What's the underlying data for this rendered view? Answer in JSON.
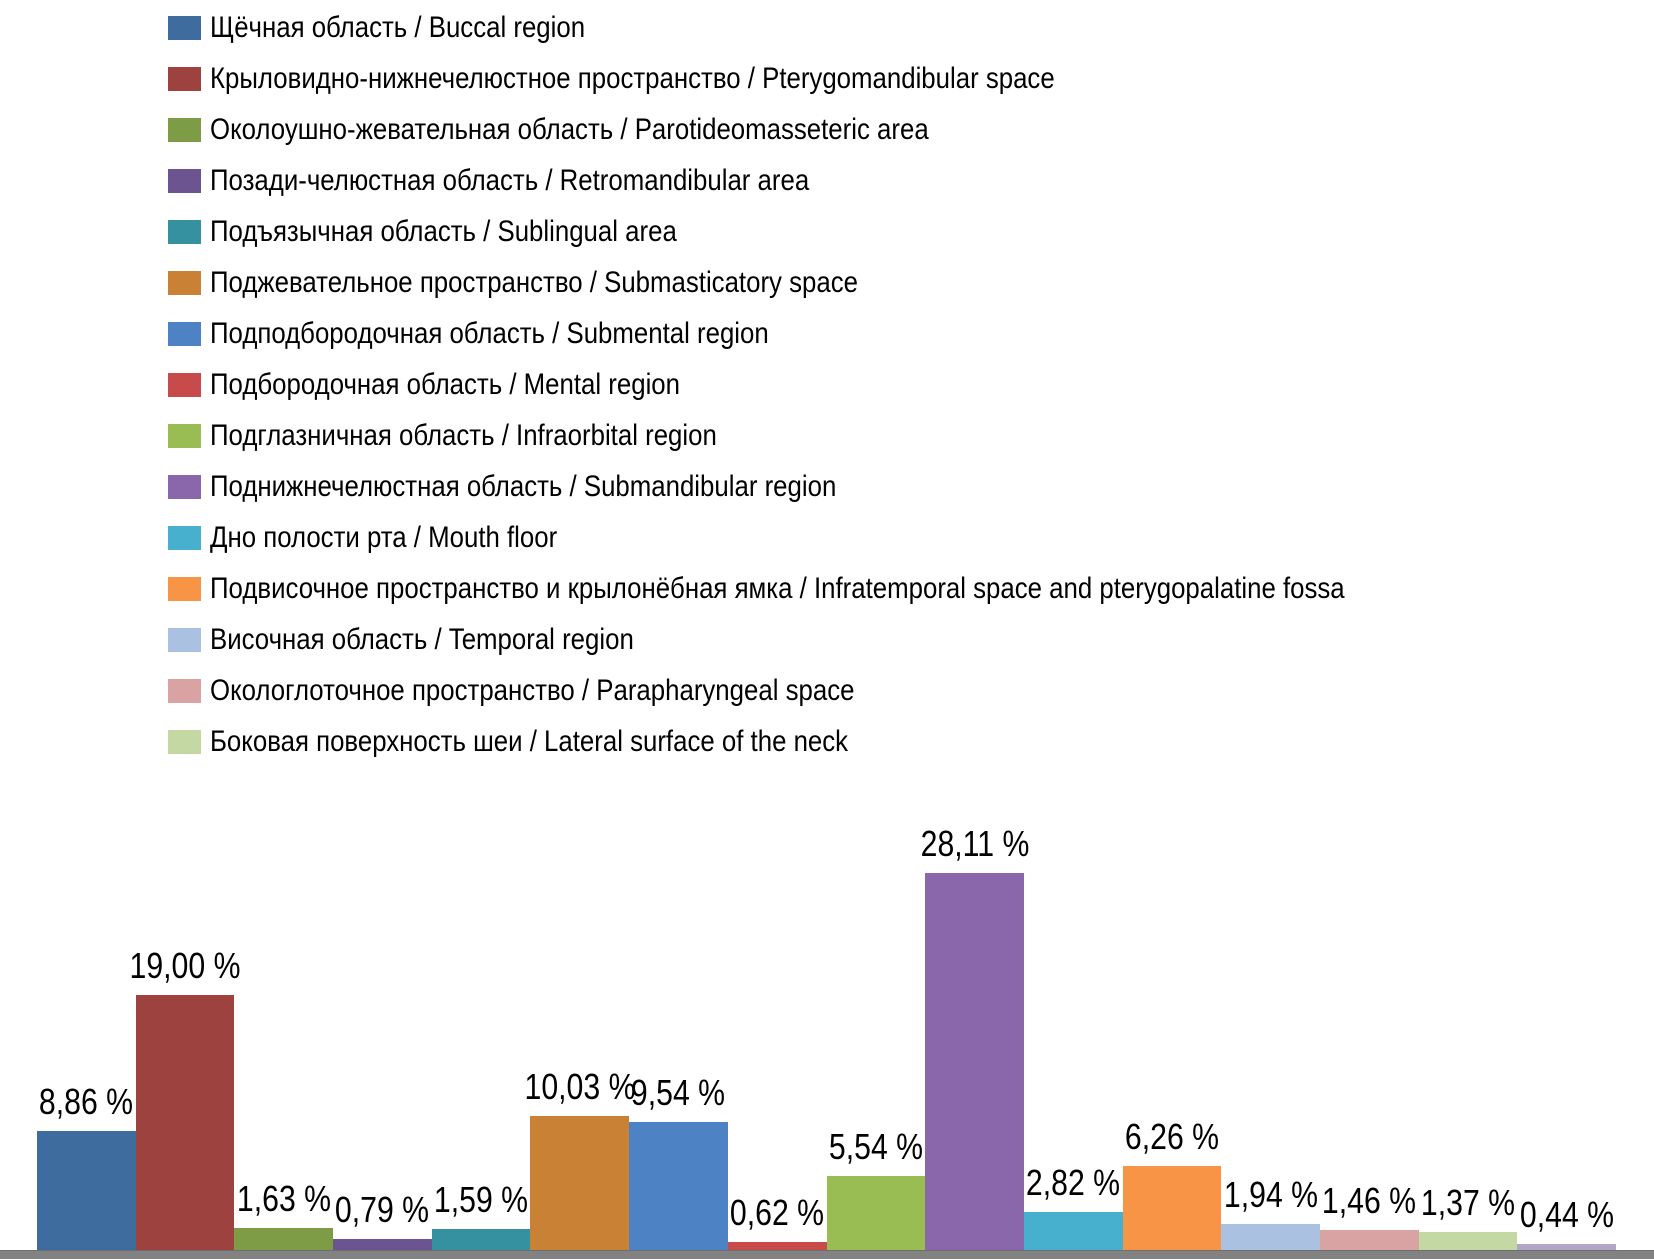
{
  "chart_data": {
    "type": "bar",
    "title": "",
    "value_unit": "%",
    "legend_position": "top-left",
    "layout_hints": {
      "gridlines": false,
      "y_axis": "hidden",
      "x_axis_line": true,
      "data_labels": "above bars, comma decimal separator"
    },
    "bars": [
      {
        "category": "Щёчная область / Buccal region",
        "value": 8.86,
        "label": "8,86 %",
        "color": "#3E6C9E",
        "in_legend": true
      },
      {
        "category": "Крыловидно-нижнечелюстное пространство / Pterygomandibular space",
        "value": 19.0,
        "label": "19,00 %",
        "color": "#9D423E",
        "in_legend": true
      },
      {
        "category": "Околоушно-жевательная область / Parotideomasseteric area",
        "value": 1.63,
        "label": "1,63 %",
        "color": "#7E9C45",
        "in_legend": true
      },
      {
        "category": "Позади-челюстная область / Retromandibular area",
        "value": 0.79,
        "label": "0,79 %",
        "color": "#6B5490",
        "in_legend": true
      },
      {
        "category": "Подъязычная область / Sublingual area",
        "value": 1.59,
        "label": "1,59 %",
        "color": "#35909F",
        "in_legend": true
      },
      {
        "category": "Поджевательное пространство / Submasticatory space",
        "value": 10.03,
        "label": "10,03 %",
        "color": "#C98136",
        "in_legend": true
      },
      {
        "category": "Подподбородочная область / Submental region",
        "value": 9.54,
        "label": "9,54 %",
        "color": "#4D83C4",
        "in_legend": true
      },
      {
        "category": "Подбородочная область / Mental region",
        "value": 0.62,
        "label": "0,62 %",
        "color": "#C74B4A",
        "in_legend": true
      },
      {
        "category": "Подглазничная область / Infraorbital region",
        "value": 5.54,
        "label": "5,54 %",
        "color": "#9ABD53",
        "in_legend": true
      },
      {
        "category": "Поднижнечелюстная область / Submandibular region",
        "value": 28.11,
        "label": "28,11 %",
        "color": "#8A66AB",
        "in_legend": true
      },
      {
        "category": "Дно полости рта / Mouth floor",
        "value": 2.82,
        "label": "2,82 %",
        "color": "#47B0CF",
        "in_legend": true
      },
      {
        "category": "Подвисочное пространство и крылонёбная ямка / Infratemporal space and pterygopalatine fossa",
        "value": 6.26,
        "label": "6,26 %",
        "color": "#F89445",
        "in_legend": true
      },
      {
        "category": "Височная область / Temporal region",
        "value": 1.94,
        "label": "1,94 %",
        "color": "#ABC1E2",
        "in_legend": true
      },
      {
        "category": "Окологлоточное пространство / Parapharyngeal space",
        "value": 1.46,
        "label": "1,46 %",
        "color": "#D8A3A2",
        "in_legend": true
      },
      {
        "category": "Боковая поверхность шеи / Lateral surface of the neck",
        "value": 1.37,
        "label": "1,37 %",
        "color": "#C3D8A2",
        "in_legend": true
      },
      {
        "category": "",
        "value": 0.44,
        "label": "0,44 %",
        "color": "#B2A6C6",
        "in_legend": false
      }
    ]
  },
  "colors": {
    "axis_line": "#828282",
    "text": "#000000",
    "background": "#FFFFFF"
  }
}
